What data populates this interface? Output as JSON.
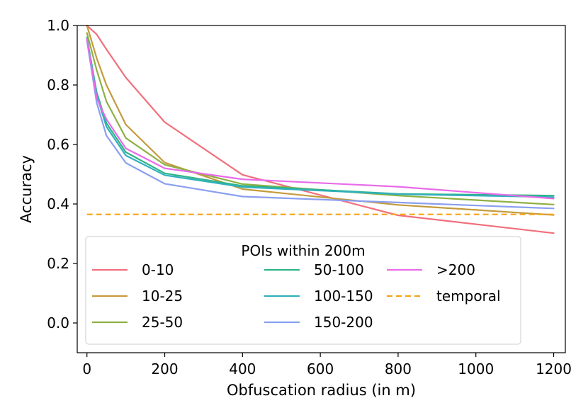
{
  "chart_data": {
    "type": "line",
    "title": "",
    "xlabel": "Obfuscation radius (in m)",
    "ylabel": "Accuracy",
    "xlim": [
      -25,
      1230
    ],
    "ylim": [
      -0.1,
      1.0
    ],
    "xticks": [
      0,
      200,
      400,
      600,
      800,
      1000,
      1200
    ],
    "xtick_labels": [
      "0",
      "200",
      "400",
      "600",
      "800",
      "1000",
      "1200"
    ],
    "yticks": [
      0.0,
      0.2,
      0.4,
      0.6,
      0.8,
      1.0
    ],
    "ytick_labels": [
      "0.0",
      "0.2",
      "0.4",
      "0.6",
      "0.8",
      "1.0"
    ],
    "grid": false,
    "legend": {
      "title": "POIs within 200m",
      "placement": "lower-left",
      "columns": 3
    },
    "x": [
      0,
      25,
      50,
      100,
      200,
      400,
      800,
      1200
    ],
    "series": [
      {
        "name": "0-10",
        "color": "#f0707c",
        "style": "solid",
        "values": [
          1.0,
          0.97,
          0.92,
          0.825,
          0.675,
          0.498,
          0.362,
          0.302
        ]
      },
      {
        "name": "10-25",
        "color": "#c49a3c",
        "style": "solid",
        "values": [
          1.0,
          0.89,
          0.8,
          0.667,
          0.539,
          0.45,
          0.397,
          0.363
        ]
      },
      {
        "name": "25-50",
        "color": "#8fb043",
        "style": "solid",
        "values": [
          0.975,
          0.85,
          0.745,
          0.622,
          0.532,
          0.467,
          0.428,
          0.398
        ]
      },
      {
        "name": "50-100",
        "color": "#2fb487",
        "style": "solid",
        "values": [
          0.96,
          0.775,
          0.672,
          0.574,
          0.503,
          0.461,
          0.434,
          0.428
        ]
      },
      {
        "name": "100-150",
        "color": "#31b0bd",
        "style": "solid",
        "values": [
          0.955,
          0.765,
          0.66,
          0.563,
          0.497,
          0.457,
          0.433,
          0.423
        ]
      },
      {
        "name": "150-200",
        "color": "#8a9ff0",
        "style": "solid",
        "values": [
          0.95,
          0.74,
          0.63,
          0.538,
          0.468,
          0.425,
          0.405,
          0.385
        ]
      },
      {
        "name": ">200",
        "color": "#e86be8",
        "style": "solid",
        "values": [
          0.955,
          0.755,
          0.685,
          0.587,
          0.52,
          0.483,
          0.458,
          0.418
        ]
      },
      {
        "name": "temporal",
        "color": "#f5a416",
        "style": "dashed",
        "values": [
          0.365,
          0.365,
          0.365,
          0.365,
          0.365,
          0.365,
          0.365,
          0.365
        ]
      }
    ]
  }
}
